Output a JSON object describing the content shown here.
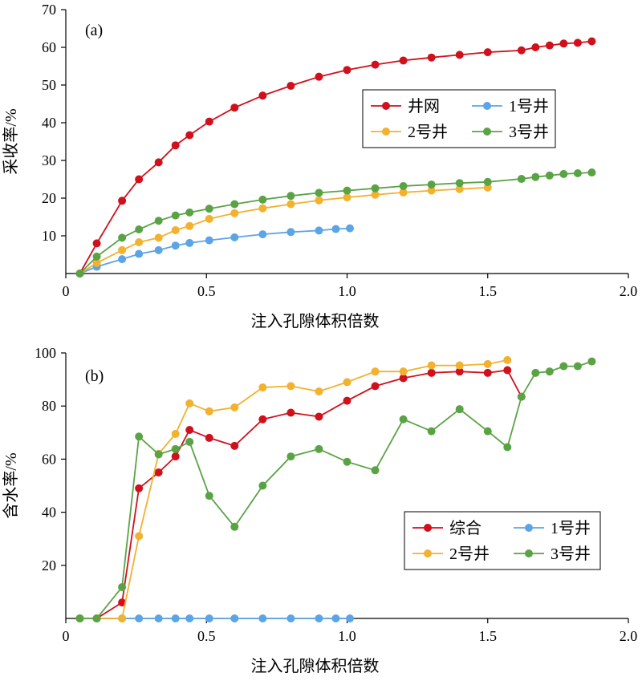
{
  "colors": {
    "red": "#d0101c",
    "blue": "#5ba4e6",
    "yellow": "#f2b12e",
    "green": "#5aa345",
    "axis": "#000000",
    "legend_border": "#000000"
  },
  "chart_data": [
    {
      "type": "line",
      "panel_label": "(a)",
      "xlabel": "注入孔隙体积倍数",
      "ylabel": "采收率/%",
      "xlim": [
        0,
        2.0
      ],
      "ylim": [
        0,
        70
      ],
      "x_ticks": [
        "0",
        "0.5",
        "1.0",
        "1.5",
        "2.0"
      ],
      "y_ticks": [
        "10",
        "20",
        "30",
        "40",
        "50",
        "60",
        "70"
      ],
      "legend_position": "right-middle",
      "legend_columns": 2,
      "series": [
        {
          "name": "井网",
          "color": "#d0101c",
          "x": [
            0.05,
            0.11,
            0.2,
            0.26,
            0.33,
            0.39,
            0.44,
            0.51,
            0.6,
            0.7,
            0.8,
            0.9,
            1.0,
            1.1,
            1.2,
            1.3,
            1.4,
            1.5,
            1.62,
            1.67,
            1.72,
            1.77,
            1.82,
            1.87
          ],
          "y": [
            0,
            8,
            19.3,
            25,
            29.5,
            34,
            36.7,
            40.3,
            44,
            47.2,
            49.8,
            52.2,
            54,
            55.4,
            56.5,
            57.3,
            58,
            58.7,
            59.2,
            60,
            60.5,
            61,
            61.2,
            61.6
          ]
        },
        {
          "name": "1号井",
          "color": "#5ba4e6",
          "x": [
            0.05,
            0.11,
            0.2,
            0.26,
            0.33,
            0.39,
            0.44,
            0.51,
            0.6,
            0.7,
            0.8,
            0.9,
            0.96,
            1.01
          ],
          "y": [
            0,
            1.8,
            3.8,
            5.2,
            6.2,
            7.4,
            8.1,
            8.8,
            9.6,
            10.4,
            11,
            11.4,
            11.8,
            12
          ]
        },
        {
          "name": "2号井",
          "color": "#f2b12e",
          "x": [
            0.05,
            0.11,
            0.2,
            0.26,
            0.33,
            0.39,
            0.44,
            0.51,
            0.6,
            0.7,
            0.8,
            0.9,
            1.0,
            1.1,
            1.2,
            1.3,
            1.4,
            1.5
          ],
          "y": [
            0,
            2.8,
            6.2,
            8.3,
            9.5,
            11.5,
            12.6,
            14.5,
            16,
            17.3,
            18.4,
            19.4,
            20.2,
            20.9,
            21.5,
            22,
            22.4,
            22.8
          ]
        },
        {
          "name": "3号井",
          "color": "#5aa345",
          "x": [
            0.05,
            0.11,
            0.2,
            0.26,
            0.33,
            0.39,
            0.44,
            0.51,
            0.6,
            0.7,
            0.8,
            0.9,
            1.0,
            1.1,
            1.2,
            1.3,
            1.4,
            1.5,
            1.62,
            1.67,
            1.72,
            1.77,
            1.82,
            1.87
          ],
          "y": [
            0,
            4.5,
            9.5,
            11.7,
            14,
            15.4,
            16.2,
            17.2,
            18.4,
            19.6,
            20.6,
            21.4,
            22,
            22.6,
            23.2,
            23.6,
            24,
            24.3,
            25.1,
            25.6,
            26,
            26.4,
            26.6,
            26.8
          ]
        }
      ]
    },
    {
      "type": "line",
      "panel_label": "(b)",
      "xlabel": "注入孔隙体积倍数",
      "ylabel": "含水率/%",
      "xlim": [
        0,
        2.0
      ],
      "ylim": [
        0,
        100
      ],
      "x_ticks": [
        "0",
        "0.5",
        "1.0",
        "1.5",
        "2.0"
      ],
      "y_ticks": [
        "20",
        "40",
        "60",
        "80",
        "100"
      ],
      "legend_position": "bottom-right",
      "legend_columns": 2,
      "series": [
        {
          "name": "综合",
          "color": "#d0101c",
          "x": [
            0.05,
            0.11,
            0.2,
            0.26,
            0.33,
            0.39,
            0.44,
            0.51,
            0.6,
            0.7,
            0.8,
            0.9,
            1.0,
            1.1,
            1.2,
            1.3,
            1.4,
            1.5,
            1.57,
            1.62
          ],
          "y": [
            0,
            0,
            6,
            49,
            55,
            61,
            71,
            68,
            65,
            75,
            77.5,
            76,
            82,
            87.5,
            90.5,
            92.5,
            93,
            92.5,
            93.5,
            83.5
          ]
        },
        {
          "name": "1号井",
          "color": "#5ba4e6",
          "x": [
            0.05,
            0.11,
            0.2,
            0.26,
            0.33,
            0.39,
            0.44,
            0.51,
            0.6,
            0.7,
            0.8,
            0.9,
            0.96,
            1.01
          ],
          "y": [
            0,
            0,
            0,
            0,
            0,
            0,
            0,
            0,
            0,
            0,
            0,
            0,
            0,
            0
          ]
        },
        {
          "name": "2号井",
          "color": "#f2b12e",
          "x": [
            0.05,
            0.11,
            0.2,
            0.26,
            0.33,
            0.39,
            0.44,
            0.51,
            0.6,
            0.7,
            0.8,
            0.9,
            1.0,
            1.1,
            1.2,
            1.3,
            1.4,
            1.5,
            1.57
          ],
          "y": [
            0,
            0,
            0,
            31,
            62,
            69.5,
            81,
            78,
            79.5,
            87,
            87.5,
            85.5,
            89,
            93,
            93,
            95.3,
            95.3,
            95.8,
            97.3
          ]
        },
        {
          "name": "3号井",
          "color": "#5aa345",
          "x": [
            0.05,
            0.11,
            0.2,
            0.26,
            0.33,
            0.39,
            0.44,
            0.51,
            0.6,
            0.7,
            0.8,
            0.9,
            1.0,
            1.1,
            1.2,
            1.3,
            1.4,
            1.5,
            1.57,
            1.62,
            1.67,
            1.72,
            1.77,
            1.82,
            1.87
          ],
          "y": [
            0,
            0,
            11.8,
            68.5,
            61.8,
            63.8,
            66.5,
            46.2,
            34.5,
            50,
            61,
            63.8,
            59,
            55.8,
            75,
            70.5,
            78.8,
            70.5,
            64.5,
            83.5,
            92.5,
            93,
            95,
            95,
            96.8
          ]
        }
      ]
    }
  ]
}
